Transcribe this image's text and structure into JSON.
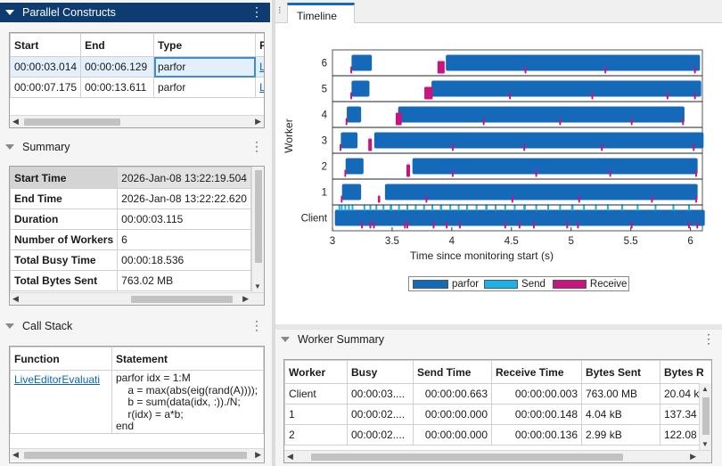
{
  "parallel_constructs": {
    "title": "Parallel Constructs",
    "columns": [
      "Start",
      "End",
      "Type",
      "F"
    ],
    "rows": [
      {
        "start": "00:00:03.014",
        "end": "00:00:06.129",
        "type": "parfor",
        "f": "L"
      },
      {
        "start": "00:00:07.175",
        "end": "00:00:13.611",
        "type": "parfor",
        "f": "L"
      }
    ]
  },
  "summary": {
    "title": "Summary",
    "rows": [
      {
        "label": "Start Time",
        "value": "2026-Jan-08 13:22:19.504"
      },
      {
        "label": "End Time",
        "value": "2026-Jan-08 13:22:22.620"
      },
      {
        "label": "Duration",
        "value": "00:00:03.115"
      },
      {
        "label": "Number of Workers",
        "value": "6"
      },
      {
        "label": "Total Busy Time",
        "value": "00:00:18.536"
      },
      {
        "label": "Total Bytes Sent",
        "value": "763.02 MB"
      }
    ]
  },
  "call_stack": {
    "title": "Call Stack",
    "columns": [
      "Function",
      "Statement"
    ],
    "function": "LiveEditorEvaluati",
    "statement": [
      "parfor idx = 1:M",
      "    a = max(abs(eig(rand(A))));",
      "    b = sum(data(idx, :))./N;",
      "    r(idx) = a*b;",
      "end"
    ]
  },
  "timeline": {
    "tab_label": "Timeline",
    "legend": [
      {
        "label": "parfor",
        "color": "#1469b8"
      },
      {
        "label": "Send",
        "color": "#1bb2e8"
      },
      {
        "label": "Receive",
        "color": "#c9137f"
      }
    ]
  },
  "chart_data": {
    "type": "bar",
    "xlabel": "Time since monitoring start (s)",
    "ylabel": "Worker",
    "xlim": [
      3,
      6.1
    ],
    "xticks": [
      "3",
      "3.5",
      "4",
      "4.5",
      "5",
      "5.5",
      "6"
    ],
    "categories": [
      "Client",
      "1",
      "2",
      "3",
      "4",
      "5",
      "6"
    ],
    "series": [
      {
        "name": "parfor",
        "intervals": [
          [
            [
              3.02,
              6.12
            ]
          ],
          [
            [
              3.08,
              3.24
            ],
            [
              3.44,
              6.06
            ]
          ],
          [
            [
              3.11,
              3.26
            ],
            [
              3.67,
              6.06
            ]
          ],
          [
            [
              3.07,
              3.21
            ],
            [
              3.35,
              6.11
            ]
          ],
          [
            [
              3.12,
              3.24
            ],
            [
              3.55,
              5.95
            ]
          ],
          [
            [
              3.16,
              3.31
            ],
            [
              3.83,
              6.09
            ]
          ],
          [
            [
              3.16,
              3.33
            ],
            [
              3.95,
              6.08
            ]
          ]
        ]
      },
      {
        "name": "Send",
        "intervals": [
          [
            [
              3.05,
              3.06
            ],
            [
              3.07,
              3.08
            ],
            [
              3.1,
              3.11
            ],
            [
              3.13,
              3.14
            ],
            [
              3.16,
              3.17
            ],
            [
              3.26,
              3.27
            ],
            [
              3.31,
              3.32
            ],
            [
              3.36,
              3.37
            ],
            [
              3.42,
              3.43
            ],
            [
              3.48,
              3.5
            ],
            [
              3.55,
              3.56
            ],
            [
              3.62,
              3.63
            ],
            [
              3.69,
              3.7
            ],
            [
              3.76,
              3.77
            ],
            [
              3.83,
              3.84
            ],
            [
              3.9,
              3.92
            ],
            [
              3.98,
              3.99
            ],
            [
              4.05,
              4.06
            ],
            [
              4.12,
              4.13
            ],
            [
              4.2,
              4.21
            ],
            [
              4.28,
              4.3
            ],
            [
              4.36,
              4.37
            ],
            [
              4.44,
              4.45
            ],
            [
              4.52,
              4.53
            ],
            [
              4.6,
              4.62
            ],
            [
              4.7,
              4.71
            ],
            [
              4.8,
              4.81
            ],
            [
              4.9,
              4.91
            ],
            [
              5.0,
              5.02
            ],
            [
              5.1,
              5.11
            ],
            [
              5.2,
              5.21
            ],
            [
              5.3,
              5.31
            ],
            [
              5.42,
              5.43
            ],
            [
              5.55,
              5.56
            ],
            [
              5.7,
              5.71
            ],
            [
              5.85,
              5.86
            ],
            [
              5.98,
              5.99
            ]
          ]
        ]
      },
      {
        "name": "Receive",
        "intervals": [
          [
            [
              3.24,
              3.25
            ],
            [
              3.31,
              3.32
            ],
            [
              3.34,
              3.35
            ],
            [
              3.6,
              3.61
            ],
            [
              3.62,
              3.63
            ],
            [
              3.84,
              3.85
            ],
            [
              3.95,
              3.96
            ],
            [
              4.06,
              4.07
            ],
            [
              4.44,
              4.45
            ],
            [
              4.56,
              4.57
            ],
            [
              4.68,
              4.69
            ],
            [
              4.96,
              4.97
            ],
            [
              5.05,
              5.06
            ],
            [
              5.5,
              5.51
            ],
            [
              5.98,
              5.99
            ],
            [
              6.05,
              6.06
            ]
          ],
          [
            [
              3.07,
              3.08
            ],
            [
              3.38,
              3.4
            ],
            [
              3.78,
              3.79
            ],
            [
              4.5,
              4.51
            ],
            [
              5.06,
              5.07
            ],
            [
              5.67,
              5.68
            ],
            [
              6.04,
              6.05
            ]
          ],
          [
            [
              3.1,
              3.11
            ],
            [
              3.62,
              3.65
            ],
            [
              4.0,
              4.01
            ],
            [
              4.7,
              4.71
            ],
            [
              5.32,
              5.33
            ],
            [
              6.04,
              6.05
            ]
          ],
          [
            [
              3.06,
              3.07
            ],
            [
              3.3,
              3.33
            ],
            [
              4.0,
              4.01
            ],
            [
              4.6,
              4.61
            ],
            [
              5.25,
              5.26
            ],
            [
              6.02,
              6.03
            ]
          ],
          [
            [
              3.11,
              3.12
            ],
            [
              3.53,
              3.58
            ],
            [
              4.26,
              4.27
            ],
            [
              4.9,
              4.91
            ],
            [
              5.5,
              5.51
            ],
            [
              5.93,
              5.94
            ]
          ],
          [
            [
              3.15,
              3.16
            ],
            [
              3.77,
              3.84
            ],
            [
              4.48,
              4.49
            ],
            [
              5.17,
              5.18
            ],
            [
              5.8,
              5.81
            ],
            [
              6.03,
              6.04
            ]
          ],
          [
            [
              3.15,
              3.16
            ],
            [
              3.88,
              3.94
            ],
            [
              4.61,
              4.62
            ],
            [
              5.28,
              5.29
            ],
            [
              6.03,
              6.04
            ]
          ]
        ]
      }
    ]
  },
  "worker_summary": {
    "title": "Worker Summary",
    "columns": [
      "Worker",
      "Busy",
      "Send Time",
      "Receive Time",
      "Bytes Sent",
      "Bytes R"
    ],
    "rows": [
      {
        "worker": "Client",
        "busy": "00:00:03....",
        "send": "00:00:00.663",
        "recv": "00:00:00.003",
        "bytes_sent": "763.00 MB",
        "bytes_recv": "20.04 k"
      },
      {
        "worker": "1",
        "busy": "00:00:02....",
        "send": "00:00:00.000",
        "recv": "00:00:00.148",
        "bytes_sent": "4.04 kB",
        "bytes_recv": "137.34"
      },
      {
        "worker": "2",
        "busy": "00:00:02....",
        "send": "00:00:00.000",
        "recv": "00:00:00.136",
        "bytes_sent": "2.99 kB",
        "bytes_recv": "122.08"
      }
    ]
  }
}
